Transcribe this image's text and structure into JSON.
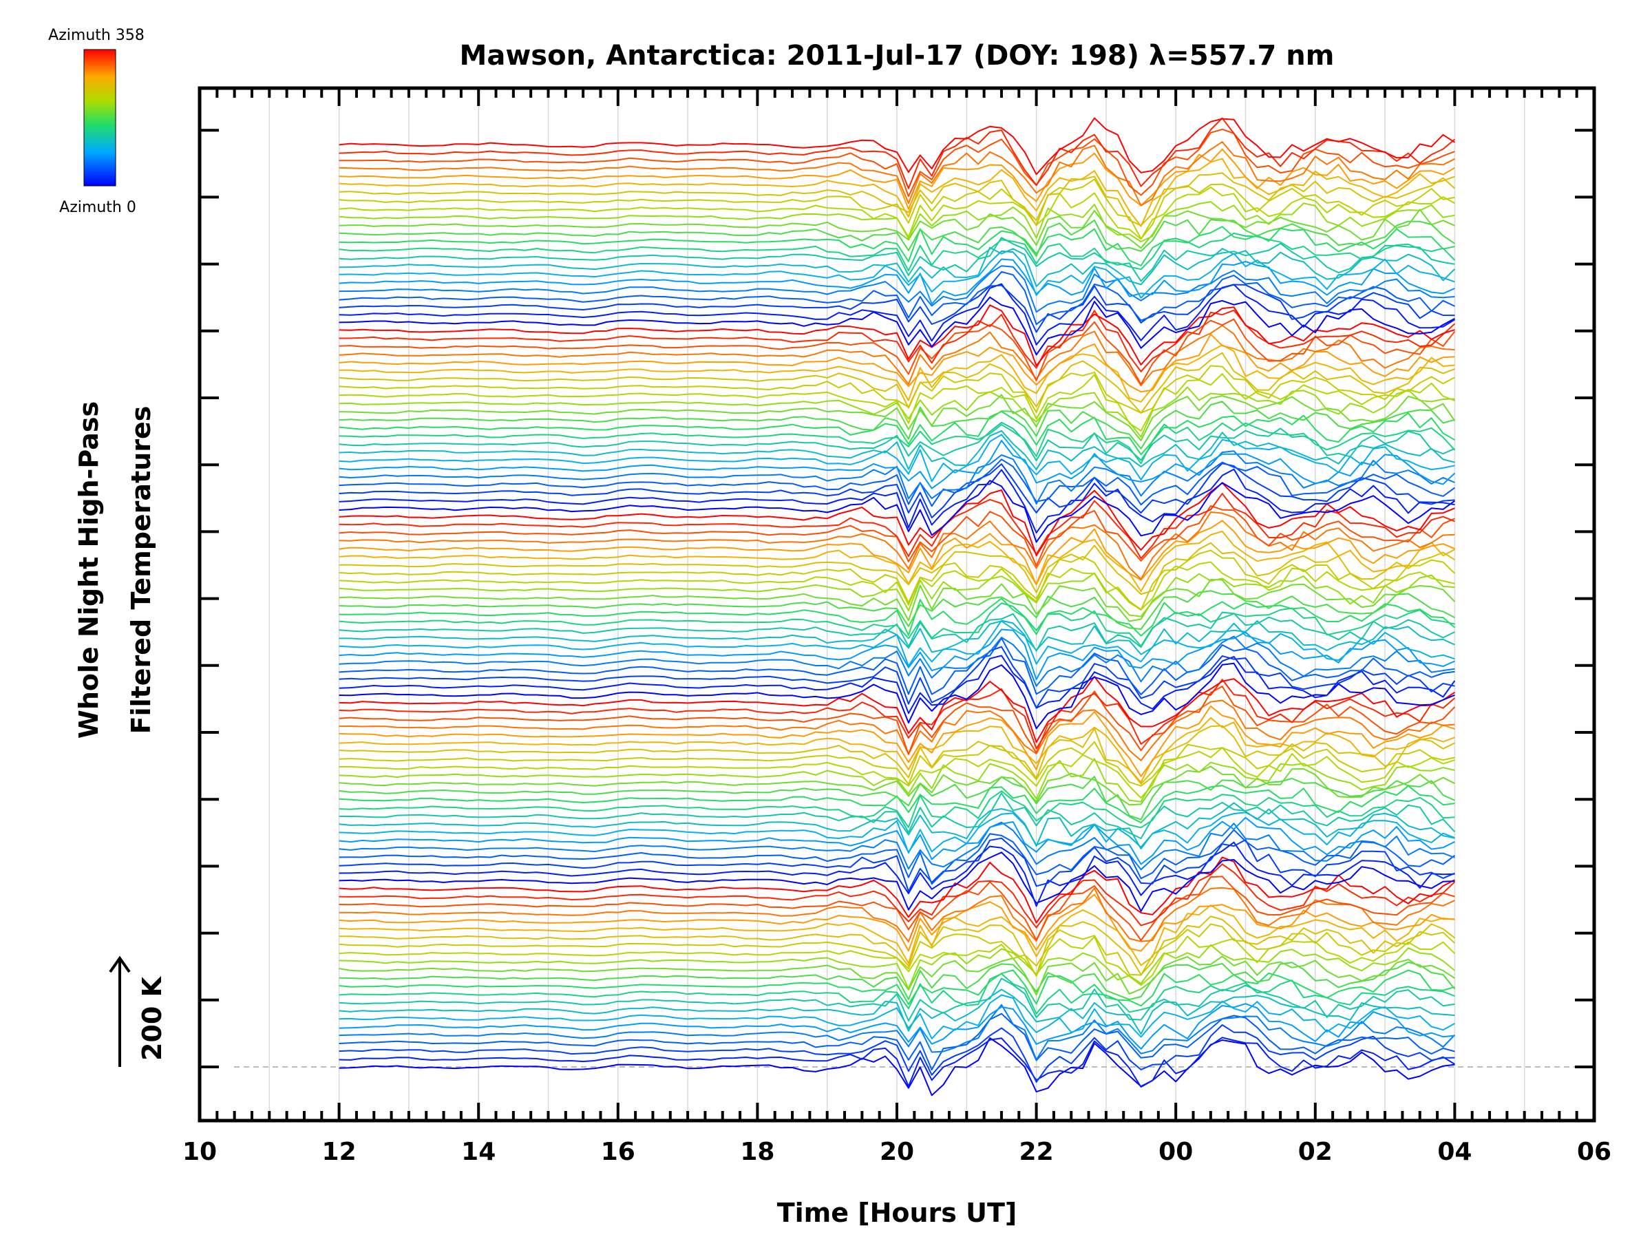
{
  "chart_data": {
    "type": "line",
    "title": "Mawson, Antarctica: 2011-Jul-17 (DOY: 198) λ=557.7 nm",
    "xlabel": "Time [Hours UT]",
    "ylabel_line1": "Whole Night High-Pass",
    "ylabel_line2": "Filtered Temperatures",
    "scale_label": "200 K",
    "colorbar": {
      "top_label": "Azimuth 358",
      "bottom_label": "Azimuth 0",
      "min": 0,
      "max": 358
    },
    "x_ticks": [
      "10",
      "12",
      "14",
      "16",
      "18",
      "20",
      "22",
      "00",
      "02",
      "04",
      "06"
    ],
    "xlim": [
      10,
      30
    ],
    "data_x_range": [
      12,
      28.1
    ],
    "grid": true,
    "series_note": "Stacked high-pass filtered temperature traces per zone, colored by azimuth (blue = 0°, red = 358°).",
    "n_traces": 115,
    "trace_group_size": 23,
    "colors": {
      "axis": "#000000",
      "grid": "#d9d9d9",
      "baseline": "#bbbbbb"
    }
  }
}
